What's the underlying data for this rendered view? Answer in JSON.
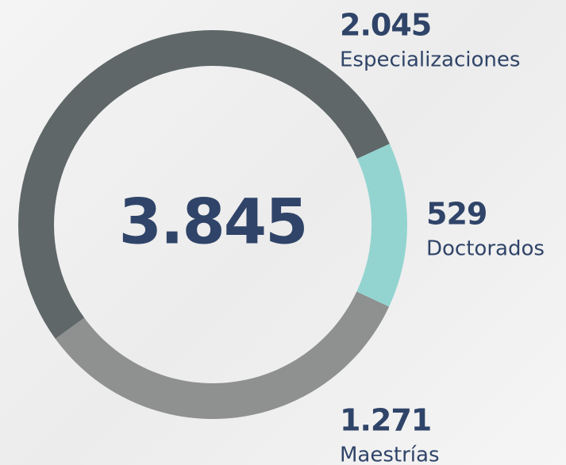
{
  "chart_data": {
    "type": "donut",
    "center_text": "3.845",
    "categories": [
      "Especializaciones",
      "Doctorados",
      "Maestrías"
    ],
    "values": [
      2045,
      529,
      1271
    ],
    "value_labels": [
      "2.045",
      "529",
      "1.271"
    ],
    "colors": [
      "#5f6768",
      "#93d4d0",
      "#8f9090"
    ]
  }
}
